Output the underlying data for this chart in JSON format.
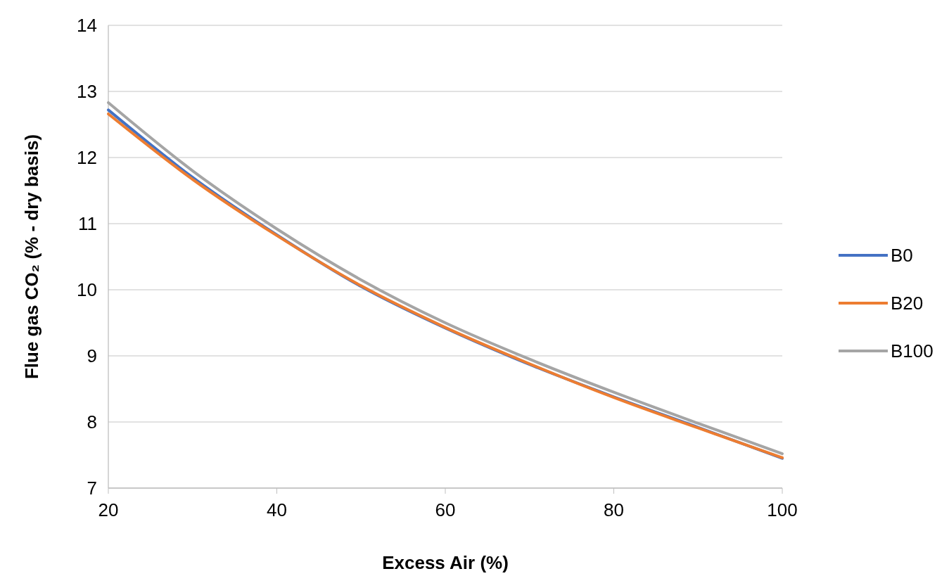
{
  "chart_data": {
    "type": "line",
    "xlabel": "Excess Air (%)",
    "ylabel": "Flue gas CO₂ (% - dry basis)",
    "x": [
      20,
      30,
      40,
      50,
      60,
      70,
      80,
      90,
      100
    ],
    "series": [
      {
        "name": "B0",
        "color": "#4472c4",
        "values": [
          12.72,
          11.7,
          10.83,
          10.05,
          9.42,
          8.87,
          8.38,
          7.92,
          7.45
        ]
      },
      {
        "name": "B20",
        "color": "#ed7d31",
        "values": [
          12.66,
          11.67,
          10.82,
          10.06,
          9.43,
          8.88,
          8.37,
          7.91,
          7.46
        ]
      },
      {
        "name": "B100",
        "color": "#a5a5a5",
        "values": [
          12.83,
          11.8,
          10.92,
          10.15,
          9.5,
          8.95,
          8.45,
          7.98,
          7.52
        ]
      }
    ],
    "xlim": [
      20,
      100
    ],
    "xticks": [
      20,
      40,
      60,
      80,
      100
    ],
    "ylim": [
      7,
      14
    ],
    "yticks": [
      7,
      8,
      9,
      10,
      11,
      12,
      13,
      14
    ],
    "grid": "y",
    "legend": "right",
    "marker": "none",
    "line_style": "solid"
  }
}
